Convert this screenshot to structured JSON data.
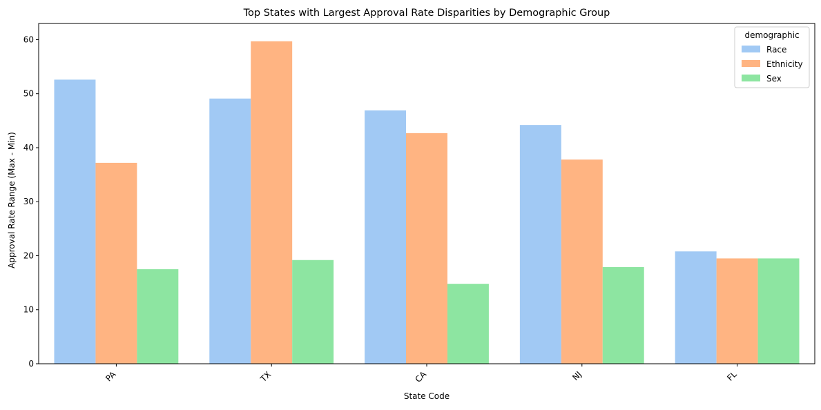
{
  "chart_data": {
    "type": "bar",
    "title": "Top States with Largest Approval Rate Disparities by Demographic Group",
    "xlabel": "State Code",
    "ylabel": "Approval Rate Range (Max - Min)",
    "categories": [
      "PA",
      "TX",
      "CA",
      "NJ",
      "FL"
    ],
    "series": [
      {
        "name": "Race",
        "color": "#a1c9f4",
        "values": [
          52.6,
          49.1,
          46.9,
          44.2,
          20.8
        ]
      },
      {
        "name": "Ethnicity",
        "color": "#ffb482",
        "values": [
          37.2,
          59.7,
          42.7,
          37.8,
          19.5
        ]
      },
      {
        "name": "Sex",
        "color": "#8de5a1",
        "values": [
          17.5,
          19.2,
          14.8,
          17.9,
          19.5
        ]
      }
    ],
    "ylim": [
      0,
      63
    ],
    "yticks": [
      0,
      10,
      20,
      30,
      40,
      50,
      60
    ],
    "xtick_rotation": 45,
    "grid": false,
    "legend": {
      "title": "demographic",
      "placement": "top-right"
    }
  }
}
